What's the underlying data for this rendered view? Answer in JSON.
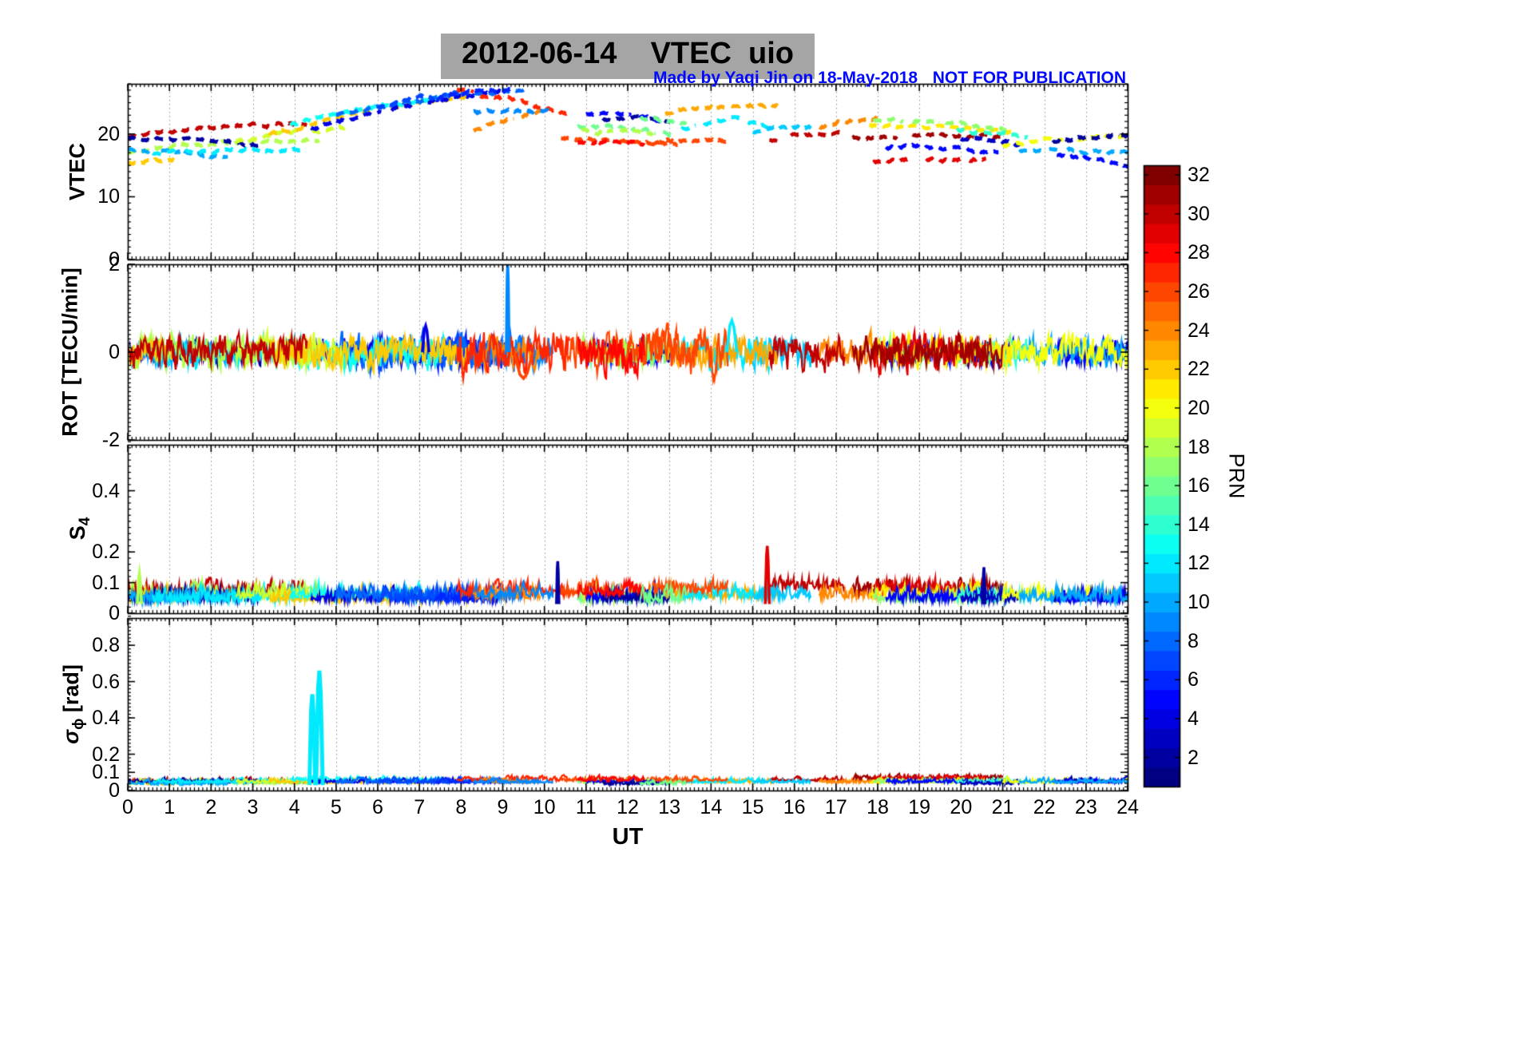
{
  "title": "2012-06-14    VTEC  uio",
  "annotations": {
    "credit": "Made by Yaqi Jin on 18-May-2018",
    "warning": "NOT FOR PUBLICATION",
    "color": "#0008ff"
  },
  "title_highlight": "#a5a5a5",
  "chart_data": {
    "type": "scatter",
    "title": "2012-06-14    VTEC  uio",
    "x_axis": {
      "label": "UT",
      "range": [
        0,
        24
      ],
      "ticks": [
        0,
        1,
        2,
        3,
        4,
        5,
        6,
        7,
        8,
        9,
        10,
        11,
        12,
        13,
        14,
        15,
        16,
        17,
        18,
        19,
        20,
        21,
        22,
        23,
        24
      ],
      "minor_step": 0.1,
      "grid": "vertical-dotted"
    },
    "colorbar": {
      "label": "PRN",
      "range": [
        1,
        32
      ],
      "ticks": [
        2,
        4,
        6,
        8,
        10,
        12,
        14,
        16,
        18,
        20,
        22,
        24,
        26,
        28,
        30,
        32
      ],
      "colormap": "jet"
    },
    "panels": [
      {
        "id": "vtec",
        "ylabel": "VTEC",
        "ylim": [
          0,
          28
        ],
        "yticks": [
          0,
          10,
          20
        ],
        "minor_step": 1,
        "line_style": "dashed"
      },
      {
        "id": "rot",
        "ylabel": "ROT [TECU/min]",
        "ylim": [
          -2,
          2
        ],
        "yticks": [
          -2,
          0,
          2
        ],
        "minor_step": 0.1,
        "line_style": "solid"
      },
      {
        "id": "s4",
        "ylabel": "S4",
        "ylabel_main": "S",
        "ylabel_sub": "4",
        "ylim": [
          0,
          0.55
        ],
        "yticks": [
          0,
          0.1,
          0.2,
          0.4
        ],
        "minor_step": 0.02,
        "line_style": "solid"
      },
      {
        "id": "sigma",
        "ylabel": "sigma_phi [rad]",
        "ylabel_main": "σ",
        "ylabel_sub": "ϕ",
        "ylabel_rest": " [rad]",
        "ylim": [
          0,
          0.95
        ],
        "yticks": [
          0,
          0.1,
          0.2,
          0.4,
          0.6,
          0.8
        ],
        "minor_step": 0.02,
        "line_style": "solid"
      }
    ],
    "passes": [
      {
        "prn": 30,
        "t0": 0.0,
        "t1": 4.3,
        "v0": 19.5,
        "v1": 21.5,
        "arc": 0.6,
        "rot": 0.28,
        "s4": 0.075,
        "sg": 0.05
      },
      {
        "prn": 18,
        "t0": 0.0,
        "t1": 4.6,
        "v0": 17.2,
        "v1": 19.0,
        "arc": 0.5,
        "rot": 0.3,
        "s4": 0.06,
        "sg": 0.045
      },
      {
        "prn": 22,
        "t0": 0.0,
        "t1": 1.1,
        "v0": 15.2,
        "v1": 16.0,
        "arc": 0.2,
        "rot": 0.22,
        "s4": 0.05,
        "sg": 0.04
      },
      {
        "prn": 2,
        "t0": 0.0,
        "t1": 3.2,
        "v0": 19.3,
        "v1": 18.2,
        "arc": 0.3,
        "rot": 0.2,
        "s4": 0.05,
        "sg": 0.05
      },
      {
        "prn": 10,
        "t0": 0.0,
        "t1": 2.4,
        "v0": 17.5,
        "v1": 16.2,
        "arc": 0.2,
        "rot": 0.22,
        "s4": 0.05,
        "sg": 0.04
      },
      {
        "prn": 12,
        "t0": 0.6,
        "t1": 4.2,
        "v0": 17.0,
        "v1": 17.5,
        "arc": 0.3,
        "rot": 0.26,
        "s4": 0.05,
        "sg": 0.05
      },
      {
        "prn": 19,
        "t0": 2.6,
        "t1": 5.2,
        "v0": 18.8,
        "v1": 21.0,
        "arc": 0.4,
        "rot": 0.32,
        "s4": 0.06,
        "sg": 0.05
      },
      {
        "prn": 22,
        "t0": 3.4,
        "t1": 8.2,
        "v0": 19.8,
        "v1": 26.0,
        "arc": 0.8,
        "rot": 0.3,
        "s4": 0.05,
        "sg": 0.05
      },
      {
        "prn": 13,
        "t0": 3.9,
        "t1": 7.6,
        "v0": 21.5,
        "v1": 25.8,
        "arc": 0.6,
        "rot": 0.3,
        "s4": 0.06,
        "sg": 0.06
      },
      {
        "prn": 4,
        "t0": 4.4,
        "t1": 9.0,
        "v0": 21.0,
        "v1": 27.0,
        "arc": 0.5,
        "rot": 0.26,
        "s4": 0.05,
        "sg": 0.05
      },
      {
        "prn": 8,
        "t0": 5.0,
        "t1": 9.6,
        "v0": 23.0,
        "v1": 27.2,
        "arc": 0.5,
        "rot": 0.34,
        "s4": 0.06,
        "sg": 0.05
      },
      {
        "prn": 7,
        "t0": 6.0,
        "t1": 8.0,
        "v0": 24.0,
        "v1": 26.5,
        "arc": 0.3,
        "rot": 0.3,
        "s4": 0.05,
        "sg": 0.05
      },
      {
        "prn": 6,
        "t0": 7.4,
        "t1": 9.2,
        "v0": 25.5,
        "v1": 27.0,
        "arc": 0.3,
        "rot": 0.26,
        "s4": 0.05,
        "sg": 0.05
      },
      {
        "prn": 27,
        "t0": 7.9,
        "t1": 10.6,
        "v0": 27.0,
        "v1": 23.0,
        "arc": 0.4,
        "rot": 0.4,
        "s4": 0.07,
        "sg": 0.06
      },
      {
        "prn": 24,
        "t0": 8.3,
        "t1": 9.9,
        "v0": 20.6,
        "v1": 23.4,
        "arc": 0.3,
        "rot": 0.3,
        "s4": 0.06,
        "sg": 0.05
      },
      {
        "prn": 9,
        "t0": 8.3,
        "t1": 10.2,
        "v0": 23.6,
        "v1": 23.2,
        "arc": 0.3,
        "rot": 0.3,
        "s4": 0.06,
        "sg": 0.05
      },
      {
        "prn": 26,
        "t0": 10.4,
        "t1": 13.2,
        "v0": 19.3,
        "v1": 18.2,
        "arc": 0.4,
        "rot": 0.36,
        "s4": 0.07,
        "sg": 0.06
      },
      {
        "prn": 16,
        "t0": 10.8,
        "t1": 13.1,
        "v0": 21.2,
        "v1": 19.8,
        "arc": 0.3,
        "rot": 0.22,
        "s4": 0.05,
        "sg": 0.05
      },
      {
        "prn": 18,
        "t0": 10.9,
        "t1": 12.6,
        "v0": 20.6,
        "v1": 20.0,
        "arc": 0.2,
        "rot": 0.24,
        "s4": 0.05,
        "sg": 0.05
      },
      {
        "prn": 5,
        "t0": 11.0,
        "t1": 12.8,
        "v0": 23.2,
        "v1": 22.2,
        "arc": 0.3,
        "rot": 0.22,
        "s4": 0.05,
        "sg": 0.05
      },
      {
        "prn": 2,
        "t0": 11.4,
        "t1": 13.0,
        "v0": 22.6,
        "v1": 22.0,
        "arc": 0.2,
        "rot": 0.2,
        "s4": 0.05,
        "sg": 0.04
      },
      {
        "prn": 28,
        "t0": 10.8,
        "t1": 12.4,
        "v0": 18.6,
        "v1": 18.3,
        "arc": 0.2,
        "rot": 0.38,
        "s4": 0.07,
        "sg": 0.06
      },
      {
        "prn": 23,
        "t0": 12.9,
        "t1": 15.6,
        "v0": 23.2,
        "v1": 24.6,
        "arc": 0.5,
        "rot": 0.3,
        "s4": 0.06,
        "sg": 0.05
      },
      {
        "prn": 12,
        "t0": 13.3,
        "t1": 15.4,
        "v0": 20.8,
        "v1": 21.2,
        "arc": 1.2,
        "rot": 0.3,
        "s4": 0.06,
        "sg": 0.05
      },
      {
        "prn": 26,
        "t0": 12.6,
        "t1": 14.4,
        "v0": 18.4,
        "v1": 18.8,
        "arc": 0.3,
        "rot": 0.42,
        "s4": 0.08,
        "sg": 0.06
      },
      {
        "prn": 16,
        "t0": 12.3,
        "t1": 13.4,
        "v0": 22.8,
        "v1": 21.6,
        "arc": 0.2,
        "rot": 0.2,
        "s4": 0.05,
        "sg": 0.04
      },
      {
        "prn": 30,
        "t0": 15.4,
        "t1": 17.2,
        "v0": 19.0,
        "v1": 20.0,
        "arc": 0.4,
        "rot": 0.32,
        "s4": 0.09,
        "sg": 0.06
      },
      {
        "prn": 11,
        "t0": 15.0,
        "t1": 16.4,
        "v0": 20.3,
        "v1": 21.0,
        "arc": 0.3,
        "rot": 0.3,
        "s4": 0.06,
        "sg": 0.05
      },
      {
        "prn": 24,
        "t0": 16.6,
        "t1": 18.0,
        "v0": 21.0,
        "v1": 22.6,
        "arc": 0.3,
        "rot": 0.3,
        "s4": 0.06,
        "sg": 0.05
      },
      {
        "prn": 31,
        "t0": 17.4,
        "t1": 21.0,
        "v0": 19.4,
        "v1": 19.6,
        "arc": 0.3,
        "rot": 0.3,
        "s4": 0.08,
        "sg": 0.07
      },
      {
        "prn": 29,
        "t0": 17.9,
        "t1": 20.6,
        "v0": 15.6,
        "v1": 15.9,
        "arc": 0.2,
        "rot": 0.34,
        "s4": 0.08,
        "sg": 0.07
      },
      {
        "prn": 21,
        "t0": 17.8,
        "t1": 21.2,
        "v0": 21.3,
        "v1": 20.2,
        "arc": 0.4,
        "rot": 0.3,
        "s4": 0.06,
        "sg": 0.05
      },
      {
        "prn": 17,
        "t0": 17.9,
        "t1": 21.2,
        "v0": 22.2,
        "v1": 20.6,
        "arc": 0.4,
        "rot": 0.24,
        "s4": 0.05,
        "sg": 0.05
      },
      {
        "prn": 5,
        "t0": 18.2,
        "t1": 20.9,
        "v0": 18.0,
        "v1": 16.9,
        "arc": 0.3,
        "rot": 0.22,
        "s4": 0.05,
        "sg": 0.05
      },
      {
        "prn": 14,
        "t0": 19.9,
        "t1": 21.6,
        "v0": 20.6,
        "v1": 19.4,
        "arc": 0.2,
        "rot": 0.24,
        "s4": 0.05,
        "sg": 0.05
      },
      {
        "prn": 3,
        "t0": 20.0,
        "t1": 21.4,
        "v0": 19.2,
        "v1": 18.4,
        "arc": 0.2,
        "rot": 0.22,
        "s4": 0.05,
        "sg": 0.04
      },
      {
        "prn": 20,
        "t0": 21.0,
        "t1": 24.0,
        "v0": 18.0,
        "v1": 19.6,
        "arc": 0.4,
        "rot": 0.3,
        "s4": 0.06,
        "sg": 0.05
      },
      {
        "prn": 2,
        "t0": 22.2,
        "t1": 24.0,
        "v0": 18.6,
        "v1": 19.8,
        "arc": 0.3,
        "rot": 0.22,
        "s4": 0.05,
        "sg": 0.05
      },
      {
        "prn": 5,
        "t0": 22.3,
        "t1": 24.0,
        "v0": 16.6,
        "v1": 14.9,
        "arc": 0.3,
        "rot": 0.24,
        "s4": 0.05,
        "sg": 0.05
      },
      {
        "prn": 10,
        "t0": 21.4,
        "t1": 24.0,
        "v0": 17.2,
        "v1": 16.9,
        "arc": 0.2,
        "rot": 0.26,
        "s4": 0.05,
        "sg": 0.05
      }
    ],
    "events": [
      {
        "panel": "rot",
        "prn": 9,
        "t": 9.12,
        "peak": 2.0,
        "width": 0.035
      },
      {
        "panel": "rot",
        "prn": 26,
        "t": 9.5,
        "peak": -0.6,
        "width": 0.22
      },
      {
        "panel": "rot",
        "prn": 12,
        "t": 14.5,
        "peak": 0.72,
        "width": 0.12
      },
      {
        "panel": "rot",
        "prn": 4,
        "t": 7.15,
        "peak": 0.6,
        "width": 0.08
      },
      {
        "panel": "sigma",
        "prn": 12,
        "t": 4.43,
        "peak": 0.53,
        "width": 0.07
      },
      {
        "panel": "sigma",
        "prn": 12,
        "t": 4.6,
        "peak": 0.66,
        "width": 0.08
      },
      {
        "panel": "s4",
        "prn": 29,
        "t": 15.35,
        "peak": 0.22,
        "width": 0.05
      },
      {
        "panel": "s4",
        "prn": 2,
        "t": 10.32,
        "peak": 0.17,
        "width": 0.03
      },
      {
        "panel": "s4",
        "prn": 18,
        "t": 0.28,
        "peak": 0.13,
        "width": 0.05
      },
      {
        "panel": "s4",
        "prn": 2,
        "t": 20.55,
        "peak": 0.15,
        "width": 0.03
      }
    ]
  }
}
